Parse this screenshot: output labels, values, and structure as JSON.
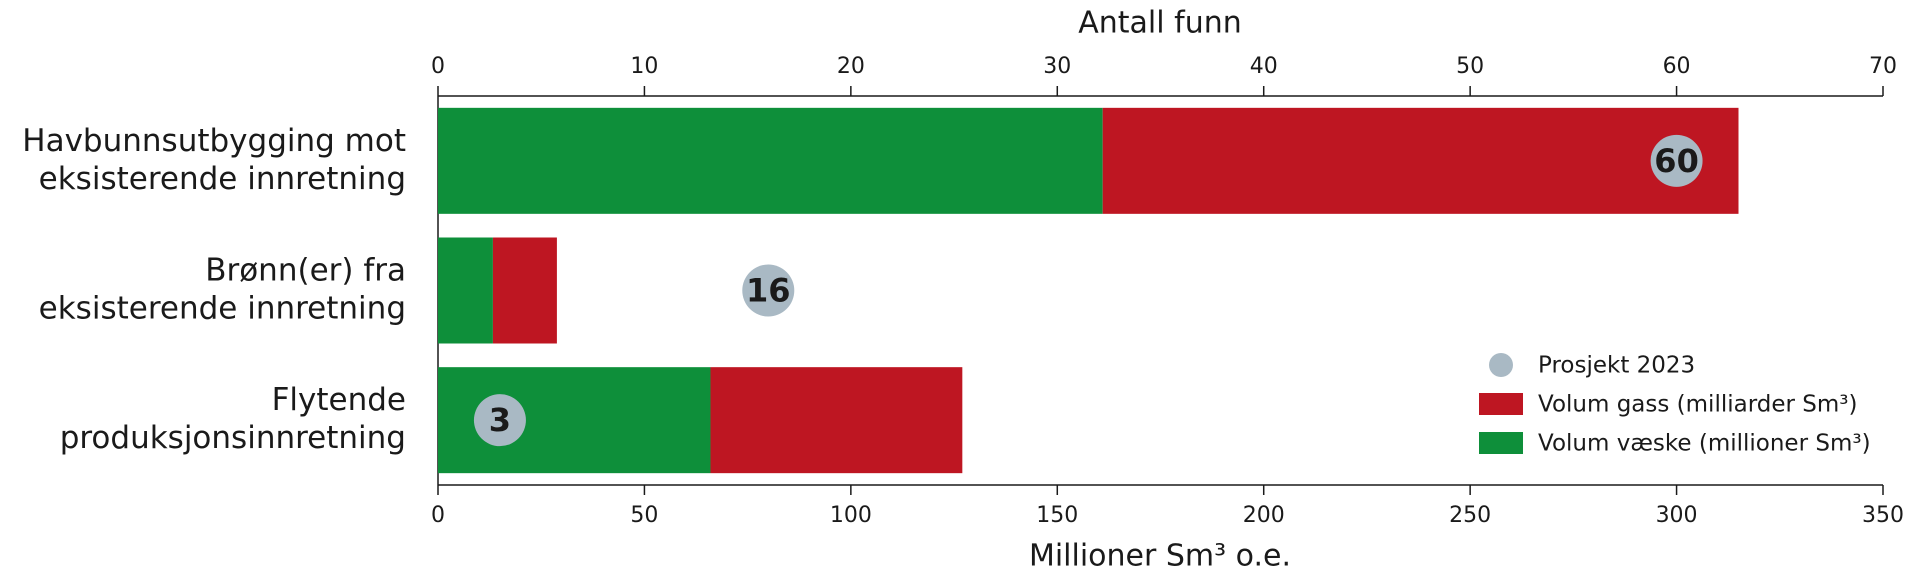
{
  "chart_data": {
    "type": "stacked-hbar",
    "categories": [
      [
        "Havbunnsutbygging mot",
        "eksisterende innretning"
      ],
      [
        "Brønn(er) fra",
        "eksisterende innretning"
      ],
      [
        "Flytende",
        "produksjonsinnretning"
      ]
    ],
    "series": [
      {
        "name": "Volum væske (millioner Sm³)",
        "color": "#0e8f3a",
        "values": [
          161,
          13.3,
          66
        ]
      },
      {
        "name": "Volum gass (milliarder Sm³)",
        "color": "#be1622",
        "values": [
          154,
          15.5,
          61
        ]
      }
    ],
    "points": {
      "name": "Prosjekt 2023",
      "color": "#a9b9c4",
      "values": [
        60,
        16,
        3
      ],
      "axis": "x2"
    },
    "xlabel": "Millioner Sm³ o.e.",
    "xlim": [
      0,
      350
    ],
    "xticks": [
      0,
      50,
      100,
      150,
      200,
      250,
      300,
      350
    ],
    "x2label": "Antall funn",
    "x2lim": [
      0,
      70
    ],
    "x2ticks": [
      0,
      10,
      20,
      30,
      40,
      50,
      60,
      70
    ],
    "legend": "lower right"
  }
}
